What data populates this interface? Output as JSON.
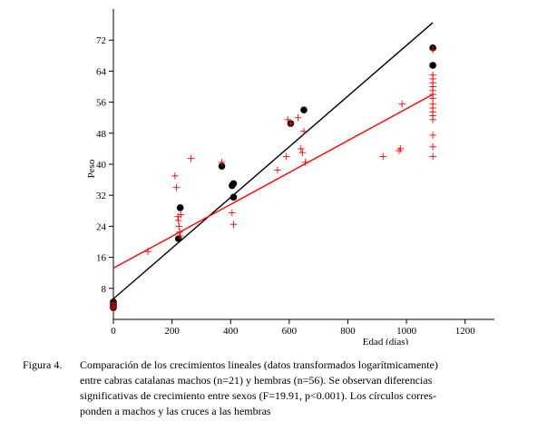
{
  "chart_data": {
    "type": "scatter",
    "title": "",
    "xlabel": "Edad (días)",
    "ylabel": "Peso",
    "xlim": [
      0,
      1300
    ],
    "ylim": [
      0,
      80
    ],
    "x_ticks": [
      0,
      200,
      400,
      600,
      800,
      1000,
      1200
    ],
    "y_ticks": [
      8,
      16,
      24,
      32,
      40,
      48,
      56,
      64,
      72
    ],
    "grid": false,
    "legend": "none",
    "series": [
      {
        "marker": "circle",
        "color": "#000000",
        "points": [
          [
            0,
            4.5
          ],
          [
            0,
            4.0
          ],
          [
            0,
            3.5
          ],
          [
            0,
            3.0
          ],
          [
            222,
            20.8
          ],
          [
            228,
            28.8
          ],
          [
            370,
            39.5
          ],
          [
            405,
            34.5
          ],
          [
            410,
            35.0
          ],
          [
            410,
            31.5
          ],
          [
            605,
            50.5
          ],
          [
            650,
            54.0
          ],
          [
            1090,
            70.0
          ],
          [
            1090,
            65.5
          ]
        ]
      },
      {
        "marker": "cross",
        "color": "#ff0000",
        "points": [
          [
            0,
            4.2
          ],
          [
            0,
            3.7
          ],
          [
            0,
            3.2
          ],
          [
            0,
            2.8
          ],
          [
            118,
            17.5
          ],
          [
            210,
            37.0
          ],
          [
            215,
            34.0
          ],
          [
            220,
            26.5
          ],
          [
            222,
            25.5
          ],
          [
            224,
            24.0
          ],
          [
            226,
            22.5
          ],
          [
            228,
            21.5
          ],
          [
            230,
            27.0
          ],
          [
            265,
            41.5
          ],
          [
            370,
            40.5
          ],
          [
            405,
            27.5
          ],
          [
            410,
            24.5
          ],
          [
            560,
            38.5
          ],
          [
            590,
            42.0
          ],
          [
            595,
            51.5
          ],
          [
            605,
            50.5
          ],
          [
            630,
            52.0
          ],
          [
            640,
            44.0
          ],
          [
            645,
            43.0
          ],
          [
            650,
            48.5
          ],
          [
            655,
            40.5
          ],
          [
            920,
            42.0
          ],
          [
            975,
            43.5
          ],
          [
            980,
            44.0
          ],
          [
            985,
            55.5
          ],
          [
            1090,
            63.0
          ],
          [
            1090,
            62.0
          ],
          [
            1090,
            61.0
          ],
          [
            1090,
            60.0
          ],
          [
            1090,
            59.0
          ],
          [
            1090,
            58.0
          ],
          [
            1090,
            57.0
          ],
          [
            1090,
            55.5
          ],
          [
            1090,
            54.5
          ],
          [
            1090,
            53.5
          ],
          [
            1090,
            52.5
          ],
          [
            1090,
            51.5
          ],
          [
            1090,
            47.5
          ],
          [
            1090,
            44.5
          ],
          [
            1090,
            42.0
          ],
          [
            1090,
            69.5
          ]
        ]
      }
    ],
    "fit_lines": [
      {
        "color": "#000000",
        "x": [
          0,
          1090
        ],
        "y": [
          5.3,
          76.5
        ]
      },
      {
        "color": "#ff0000",
        "x": [
          0,
          1090
        ],
        "y": [
          13.2,
          58.0
        ]
      }
    ]
  },
  "caption": {
    "label": "Figura 4.",
    "lines": [
      "Comparación de los crecimientos lineales (datos transformados logarítmicamente)",
      "entre cabras catalanas machos (n=21) y hembras (n=56). Se observan diferencias",
      "significativas de crecimiento entre sexos (F=19.91, p<0.001). Los círculos corres-",
      "ponden a machos y las cruces a las hembras"
    ]
  }
}
